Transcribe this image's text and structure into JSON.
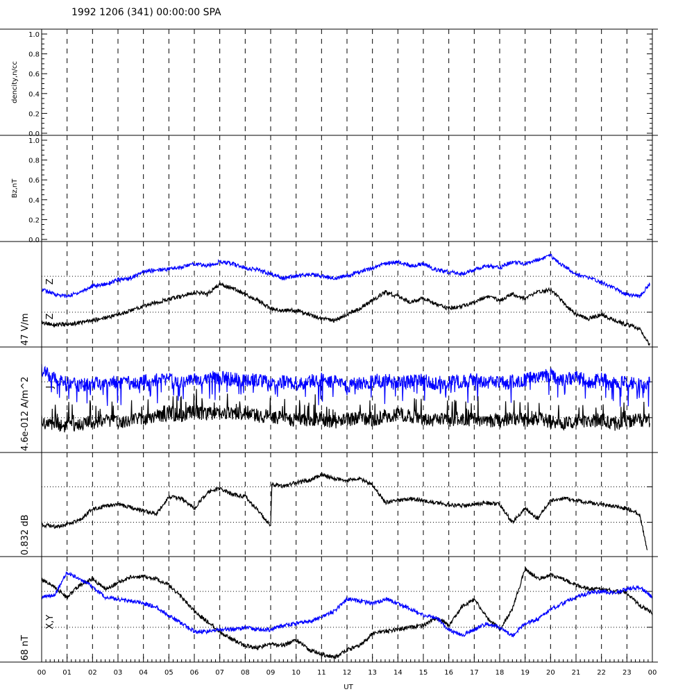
{
  "title": "1992 1206 (341) 00:00:00 SPA",
  "colors": {
    "black": "#000000",
    "blue": "#0000ff"
  },
  "chart_data": {
    "type": "line",
    "x_axis": {
      "label": "UT",
      "range": [
        0,
        24
      ],
      "tick_labels": [
        "00",
        "01",
        "02",
        "03",
        "04",
        "05",
        "06",
        "07",
        "08",
        "09",
        "10",
        "11",
        "12",
        "13",
        "14",
        "15",
        "16",
        "17",
        "18",
        "19",
        "20",
        "21",
        "22",
        "23",
        "00"
      ]
    },
    "panels": [
      {
        "id": "density",
        "ylabel": "dencity,n/cc",
        "ylim": [
          0,
          1
        ],
        "ytick_labels": [
          "0.0",
          "0.2",
          "0.4",
          "0.6",
          "0.8",
          "1.0"
        ],
        "series": []
      },
      {
        "id": "bz",
        "ylabel": "Bz,nT",
        "ylim": [
          0,
          1
        ],
        "ytick_labels": [
          "0.0",
          "0.2",
          "0.4",
          "0.6",
          "0.8",
          "1.0"
        ],
        "series": []
      },
      {
        "id": "efield",
        "scale_label": "47 V/m",
        "trace_labels": [
          "Z",
          "Z"
        ],
        "series": [
          {
            "color": "blue",
            "x": [
              0,
              0.5,
              1,
              1.5,
              2,
              2.5,
              3,
              3.5,
              4,
              4.5,
              5,
              5.5,
              6,
              6.5,
              7,
              7.5,
              8,
              8.5,
              9,
              9.5,
              10,
              10.5,
              11,
              11.5,
              12,
              12.5,
              13,
              13.5,
              14,
              14.5,
              15,
              15.5,
              16,
              16.5,
              17,
              17.5,
              18,
              18.5,
              19,
              19.5,
              20,
              20.5,
              21,
              21.5,
              22,
              22.5,
              23,
              23.5,
              23.9
            ],
            "y": [
              0.55,
              0.5,
              0.48,
              0.52,
              0.58,
              0.6,
              0.64,
              0.66,
              0.72,
              0.74,
              0.75,
              0.77,
              0.8,
              0.78,
              0.82,
              0.8,
              0.76,
              0.74,
              0.7,
              0.66,
              0.68,
              0.7,
              0.68,
              0.66,
              0.68,
              0.72,
              0.76,
              0.8,
              0.82,
              0.78,
              0.8,
              0.74,
              0.72,
              0.7,
              0.74,
              0.78,
              0.76,
              0.82,
              0.8,
              0.84,
              0.88,
              0.78,
              0.7,
              0.66,
              0.62,
              0.56,
              0.5,
              0.48,
              0.6
            ]
          },
          {
            "color": "black",
            "x": [
              0,
              0.5,
              1,
              1.5,
              2,
              2.5,
              3,
              3.5,
              4,
              4.5,
              5,
              5.5,
              6,
              6.5,
              7,
              7.5,
              8,
              8.5,
              9,
              9.5,
              10,
              10.5,
              11,
              11.5,
              12,
              12.5,
              13,
              13.5,
              14,
              14.5,
              15,
              15.5,
              16,
              16.5,
              17,
              17.5,
              18,
              18.5,
              19,
              19.5,
              20,
              20.5,
              21,
              21.5,
              22,
              22.5,
              23,
              23.5,
              23.9
            ],
            "y": [
              0.22,
              0.2,
              0.2,
              0.22,
              0.24,
              0.27,
              0.3,
              0.34,
              0.38,
              0.42,
              0.45,
              0.48,
              0.52,
              0.5,
              0.6,
              0.56,
              0.5,
              0.44,
              0.36,
              0.34,
              0.34,
              0.3,
              0.26,
              0.24,
              0.3,
              0.36,
              0.44,
              0.52,
              0.48,
              0.42,
              0.46,
              0.4,
              0.36,
              0.38,
              0.42,
              0.48,
              0.44,
              0.5,
              0.46,
              0.52,
              0.55,
              0.42,
              0.3,
              0.26,
              0.3,
              0.24,
              0.2,
              0.16,
              0.0
            ]
          }
        ]
      },
      {
        "id": "current",
        "scale_label": "4.6e-012 A/m^2",
        "trace_labels": [
          "J",
          "J"
        ],
        "series": [
          {
            "color": "blue",
            "x": [
              0,
              0.5,
              1,
              1.5,
              2,
              2.5,
              3,
              3.5,
              4,
              4.5,
              5,
              5.5,
              6,
              6.5,
              7,
              7.5,
              8,
              8.5,
              9,
              9.5,
              10,
              10.5,
              11,
              11.5,
              12,
              12.5,
              13,
              13.5,
              14,
              14.5,
              15,
              15.5,
              16,
              16.5,
              17,
              17.5,
              18,
              18.5,
              19,
              19.5,
              20,
              20.5,
              21,
              21.5,
              22,
              22.5,
              23,
              23.5,
              23.9
            ],
            "y": [
              0.8,
              0.7,
              0.66,
              0.64,
              0.66,
              0.66,
              0.68,
              0.66,
              0.68,
              0.7,
              0.7,
              0.68,
              0.7,
              0.72,
              0.72,
              0.7,
              0.68,
              0.7,
              0.66,
              0.68,
              0.66,
              0.68,
              0.7,
              0.68,
              0.64,
              0.66,
              0.68,
              0.7,
              0.66,
              0.68,
              0.7,
              0.66,
              0.68,
              0.68,
              0.7,
              0.68,
              0.66,
              0.68,
              0.7,
              0.72,
              0.74,
              0.7,
              0.72,
              0.68,
              0.7,
              0.66,
              0.68,
              0.64,
              0.66
            ]
          },
          {
            "color": "black",
            "x": [
              0,
              0.5,
              1,
              1.5,
              2,
              2.5,
              3,
              3.5,
              4,
              4.5,
              5,
              5.5,
              6,
              6.5,
              7,
              7.5,
              8,
              8.5,
              9,
              9.5,
              10,
              10.5,
              11,
              11.5,
              12,
              12.5,
              13,
              13.5,
              14,
              14.5,
              15,
              15.5,
              16,
              16.5,
              17,
              17.5,
              18,
              18.5,
              19,
              19.5,
              20,
              20.5,
              21,
              21.5,
              22,
              22.5,
              23,
              23.5,
              23.9
            ],
            "y": [
              0.28,
              0.26,
              0.24,
              0.26,
              0.28,
              0.3,
              0.28,
              0.3,
              0.32,
              0.34,
              0.36,
              0.34,
              0.38,
              0.36,
              0.38,
              0.36,
              0.38,
              0.34,
              0.34,
              0.32,
              0.3,
              0.3,
              0.32,
              0.28,
              0.3,
              0.32,
              0.3,
              0.34,
              0.36,
              0.34,
              0.32,
              0.3,
              0.3,
              0.32,
              0.3,
              0.28,
              0.3,
              0.32,
              0.3,
              0.32,
              0.28,
              0.26,
              0.3,
              0.28,
              0.3,
              0.26,
              0.28,
              0.3,
              0.28
            ]
          }
        ]
      },
      {
        "id": "spectral",
        "scale_label": "0.832 dB",
        "series": [
          {
            "color": "black",
            "x": [
              0,
              0.5,
              1,
              1.5,
              2,
              2.5,
              3,
              3.5,
              4,
              4.5,
              5,
              5.5,
              6,
              6.5,
              7,
              7.5,
              8,
              8.5,
              9,
              9.05,
              9.5,
              10,
              10.5,
              11,
              11.5,
              12,
              12.5,
              13,
              13.5,
              14,
              14.5,
              15,
              15.5,
              16,
              16.5,
              17,
              17.5,
              18,
              18.5,
              19,
              19.5,
              20,
              20.5,
              21,
              21.5,
              22,
              22.5,
              23,
              23.5,
              23.8
            ],
            "y": [
              0.3,
              0.28,
              0.3,
              0.34,
              0.46,
              0.48,
              0.5,
              0.47,
              0.44,
              0.4,
              0.58,
              0.56,
              0.46,
              0.62,
              0.66,
              0.6,
              0.58,
              0.44,
              0.28,
              0.7,
              0.68,
              0.72,
              0.74,
              0.8,
              0.76,
              0.74,
              0.76,
              0.7,
              0.52,
              0.54,
              0.56,
              0.54,
              0.52,
              0.5,
              0.49,
              0.5,
              0.52,
              0.5,
              0.32,
              0.46,
              0.36,
              0.54,
              0.56,
              0.54,
              0.52,
              0.5,
              0.48,
              0.46,
              0.4,
              0.05
            ]
          }
        ]
      },
      {
        "id": "magnetic",
        "scale_label": "68 nT",
        "trace_labels": [
          "X,Y"
        ],
        "series": [
          {
            "color": "black",
            "x": [
              0,
              0.5,
              1,
              1.5,
              2,
              2.5,
              3,
              3.5,
              4,
              4.5,
              5,
              5.5,
              6,
              6.5,
              7,
              7.5,
              8,
              8.5,
              9,
              9.5,
              10,
              10.5,
              11,
              11.5,
              12,
              12.5,
              13,
              13.5,
              14,
              14.5,
              15,
              15.5,
              16,
              16.5,
              17,
              17.5,
              18,
              18.5,
              19,
              19.5,
              20,
              20.5,
              21,
              21.5,
              22,
              22.5,
              23,
              23.5,
              24
            ],
            "y": [
              0.8,
              0.72,
              0.62,
              0.74,
              0.8,
              0.7,
              0.76,
              0.82,
              0.82,
              0.8,
              0.74,
              0.62,
              0.48,
              0.38,
              0.28,
              0.2,
              0.14,
              0.12,
              0.16,
              0.14,
              0.2,
              0.1,
              0.06,
              0.02,
              0.1,
              0.14,
              0.26,
              0.28,
              0.3,
              0.32,
              0.34,
              0.42,
              0.34,
              0.52,
              0.6,
              0.42,
              0.3,
              0.5,
              0.9,
              0.8,
              0.84,
              0.8,
              0.74,
              0.7,
              0.7,
              0.68,
              0.66,
              0.54,
              0.46
            ]
          },
          {
            "color": "blue",
            "x": [
              0,
              0.5,
              1,
              1.5,
              2,
              2.5,
              3,
              3.5,
              4,
              4.5,
              5,
              5.5,
              6,
              6.5,
              7,
              7.5,
              8,
              8.5,
              9,
              9.5,
              10,
              10.5,
              11,
              11.5,
              12,
              12.5,
              13,
              13.5,
              14,
              14.5,
              15,
              15.5,
              16,
              16.5,
              17,
              17.5,
              18,
              18.5,
              19,
              19.5,
              20,
              20.5,
              21,
              21.5,
              22,
              22.5,
              23,
              23.5,
              24
            ],
            "y": [
              0.62,
              0.64,
              0.86,
              0.8,
              0.72,
              0.62,
              0.6,
              0.58,
              0.56,
              0.52,
              0.44,
              0.36,
              0.28,
              0.28,
              0.3,
              0.3,
              0.32,
              0.3,
              0.3,
              0.34,
              0.36,
              0.38,
              0.42,
              0.48,
              0.6,
              0.58,
              0.56,
              0.6,
              0.56,
              0.5,
              0.44,
              0.42,
              0.3,
              0.24,
              0.3,
              0.36,
              0.32,
              0.24,
              0.36,
              0.4,
              0.5,
              0.56,
              0.62,
              0.66,
              0.68,
              0.66,
              0.7,
              0.72,
              0.62
            ]
          }
        ]
      }
    ]
  }
}
